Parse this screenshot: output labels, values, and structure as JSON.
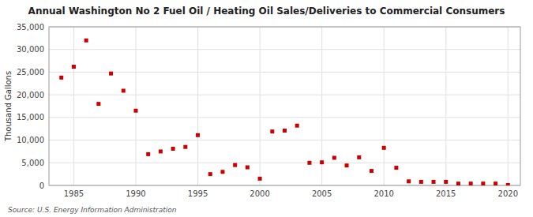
{
  "chart_data": {
    "type": "scatter",
    "title": "Annual Washington No 2 Fuel Oil / Heating Oil Sales/Deliveries to Commercial Consumers",
    "ylabel": "Thousand  Gallons",
    "annotations": [
      "Source: U.S. Energy Information Administration"
    ],
    "color": "#cc0000",
    "marker": "square",
    "grid": true,
    "xlim": [
      1983,
      2021
    ],
    "ylim": [
      0,
      35000
    ],
    "xticks": [
      1985,
      1990,
      1995,
      2000,
      2005,
      2010,
      2015,
      2020
    ],
    "yticks": [
      0,
      {
        "value": 5000,
        "label": "5,000"
      },
      {
        "value": 10000,
        "label": "10,000"
      },
      {
        "value": 15000,
        "label": "15,000"
      },
      {
        "value": 20000,
        "label": "20,000"
      },
      {
        "value": 25000,
        "label": "25,000"
      },
      {
        "value": 30000,
        "label": "30,000"
      },
      {
        "value": 35000,
        "label": "35,000"
      }
    ],
    "x": [
      1984,
      1985,
      1986,
      1987,
      1988,
      1989,
      1990,
      1991,
      1992,
      1993,
      1994,
      1995,
      1996,
      1997,
      1998,
      1999,
      2000,
      2001,
      2002,
      2003,
      2004,
      2005,
      2006,
      2007,
      2008,
      2009,
      2010,
      2011,
      2012,
      2013,
      2014,
      2015,
      2016,
      2017,
      2018,
      2019,
      2020
    ],
    "values": [
      23800,
      26200,
      32000,
      18000,
      24700,
      20900,
      16500,
      6900,
      7500,
      8100,
      8500,
      11100,
      2500,
      3000,
      4500,
      4000,
      1500,
      11900,
      12100,
      13200,
      5000,
      5100,
      6100,
      4400,
      6200,
      3200,
      8300,
      3900,
      900,
      800,
      800,
      800,
      400,
      400,
      400,
      400,
      100
    ]
  }
}
